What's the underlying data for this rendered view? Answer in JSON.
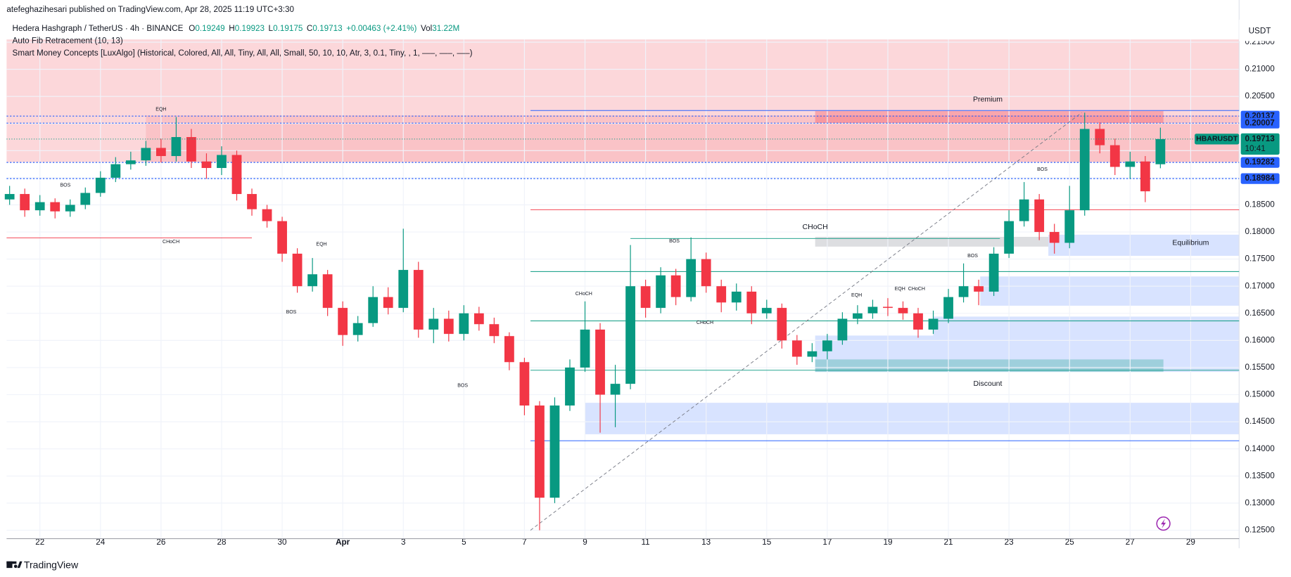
{
  "header": {
    "publisher": "atefeghazihesari published on TradingView.com, Apr 28, 2025 11:19 UTC+3:30",
    "symbol": "Hedera Hashgraph / TetherUS · 4h · BINANCE",
    "ohlc_keys": [
      "O",
      "H",
      "L",
      "C"
    ],
    "change": "+0.00463 (+2.41%)",
    "vol_key": "Vol",
    "vol": "31.22M",
    "indicators": [
      "Auto Fib Retracement (10, 13)",
      "Smart Money Concepts [LuxAlgo] (Historical, Colored, All, All, Tiny, All, All, Small, 50, 10, 10, Atr, 3, 0.1, Tiny, , 1, —–, —–, —–)"
    ],
    "currency": "USDT",
    "footer": "TradingView"
  },
  "chart_data": {
    "type": "candlestick",
    "up_color": "#089981",
    "down_color": "#f23645",
    "grid": true,
    "symbol_label": "HBARUSDT",
    "countdown": "10:41",
    "x": [
      -1,
      -0.5,
      0,
      0.5,
      1,
      1.5,
      2,
      2.5,
      3,
      3.5,
      4,
      4.5,
      5,
      5.5,
      6,
      6.5,
      7,
      7.5,
      8,
      8.5,
      9,
      9.5,
      10,
      10.5,
      11,
      11.5,
      12,
      12.5,
      13,
      13.5,
      14,
      14.5,
      15,
      15.5,
      16,
      16.5,
      17,
      17.5,
      18,
      18.5,
      19,
      19.5,
      20,
      20.5,
      21,
      21.5,
      22,
      22.5,
      23,
      23.5,
      24,
      24.5,
      25,
      25.5,
      26,
      26.5,
      27,
      27.5,
      28,
      28.5,
      29,
      29.5,
      30,
      30.5,
      31,
      31.5,
      32,
      32.5,
      33,
      33.5,
      34,
      34.5,
      35,
      35.5,
      36,
      36.5,
      37
    ],
    "open": [
      0.186,
      0.187,
      0.184,
      0.1855,
      0.1838,
      0.185,
      0.1872,
      0.19,
      0.1925,
      0.1932,
      0.1955,
      0.194,
      0.1975,
      0.193,
      0.1918,
      0.1942,
      0.187,
      0.1842,
      0.182,
      0.176,
      0.17,
      0.1722,
      0.166,
      0.161,
      0.1632,
      0.168,
      0.166,
      0.173,
      0.162,
      0.164,
      0.1612,
      0.165,
      0.163,
      0.1608,
      0.156,
      0.148,
      0.131,
      0.148,
      0.155,
      0.162,
      0.15,
      0.152,
      0.17,
      0.166,
      0.172,
      0.168,
      0.175,
      0.17,
      0.167,
      0.169,
      0.165,
      0.166,
      0.16,
      0.157,
      0.158,
      0.16,
      0.164,
      0.165,
      0.1662,
      0.166,
      0.165,
      0.162,
      0.164,
      0.168,
      0.17,
      0.169,
      0.176,
      0.182,
      0.186,
      0.18,
      0.178,
      0.184,
      0.199,
      0.196,
      0.192,
      0.193,
      0.19249
    ],
    "high": [
      0.1885,
      0.188,
      0.1868,
      0.1862,
      0.186,
      0.1882,
      0.1912,
      0.1938,
      0.1948,
      0.1968,
      0.1972,
      0.2012,
      0.199,
      0.1945,
      0.1958,
      0.195,
      0.188,
      0.185,
      0.1828,
      0.177,
      0.1752,
      0.173,
      0.1672,
      0.1645,
      0.17,
      0.1698,
      0.1806,
      0.1745,
      0.166,
      0.1655,
      0.1665,
      0.1662,
      0.1642,
      0.1615,
      0.1568,
      0.1488,
      0.1495,
      0.1565,
      0.1672,
      0.1632,
      0.1555,
      0.1776,
      0.1712,
      0.1735,
      0.1732,
      0.179,
      0.1762,
      0.1712,
      0.1705,
      0.17,
      0.1675,
      0.1668,
      0.161,
      0.1595,
      0.1612,
      0.1652,
      0.1665,
      0.1675,
      0.1678,
      0.1672,
      0.166,
      0.1655,
      0.1695,
      0.1742,
      0.1712,
      0.1772,
      0.184,
      0.1892,
      0.187,
      0.1815,
      0.1885,
      0.202,
      0.2002,
      0.1972,
      0.1948,
      0.194,
      0.19923
    ],
    "low": [
      0.185,
      0.1828,
      0.183,
      0.1825,
      0.1828,
      0.1842,
      0.1865,
      0.1892,
      0.1915,
      0.1922,
      0.1928,
      0.193,
      0.1918,
      0.1898,
      0.1905,
      0.1858,
      0.183,
      0.1808,
      0.1745,
      0.1688,
      0.169,
      0.1645,
      0.159,
      0.1598,
      0.1625,
      0.1648,
      0.1652,
      0.1605,
      0.1595,
      0.1598,
      0.16,
      0.1618,
      0.1595,
      0.1545,
      0.1462,
      0.125,
      0.13,
      0.147,
      0.1542,
      0.143,
      0.144,
      0.151,
      0.1642,
      0.165,
      0.1665,
      0.1672,
      0.1688,
      0.1652,
      0.1655,
      0.163,
      0.164,
      0.1585,
      0.1555,
      0.156,
      0.1565,
      0.1592,
      0.163,
      0.164,
      0.1645,
      0.1638,
      0.1605,
      0.1612,
      0.1632,
      0.167,
      0.1665,
      0.1682,
      0.1752,
      0.181,
      0.1785,
      0.176,
      0.177,
      0.183,
      0.1945,
      0.1905,
      0.1898,
      0.1855,
      0.19175
    ],
    "close": [
      0.187,
      0.184,
      0.1855,
      0.1838,
      0.185,
      0.1872,
      0.19,
      0.1925,
      0.1932,
      0.1955,
      0.194,
      0.1975,
      0.193,
      0.1918,
      0.1942,
      0.187,
      0.1842,
      0.182,
      0.176,
      0.17,
      0.1722,
      0.166,
      0.161,
      0.1632,
      0.168,
      0.166,
      0.173,
      0.162,
      0.164,
      0.1612,
      0.165,
      0.163,
      0.1608,
      0.156,
      0.148,
      0.131,
      0.148,
      0.155,
      0.162,
      0.15,
      0.152,
      0.17,
      0.166,
      0.172,
      0.168,
      0.175,
      0.17,
      0.167,
      0.169,
      0.165,
      0.166,
      0.16,
      0.157,
      0.158,
      0.16,
      0.164,
      0.165,
      0.1662,
      0.166,
      0.165,
      0.162,
      0.164,
      0.168,
      0.17,
      0.169,
      0.176,
      0.182,
      0.186,
      0.18,
      0.178,
      0.184,
      0.199,
      0.196,
      0.192,
      0.193,
      0.1875,
      0.19713
    ],
    "xlim": [
      -1.1,
      39.6
    ],
    "ylim": [
      0.1235,
      0.2155
    ],
    "xticks": [
      {
        "value": 0,
        "label": "22"
      },
      {
        "value": 2,
        "label": "24"
      },
      {
        "value": 4,
        "label": "26"
      },
      {
        "value": 6,
        "label": "28"
      },
      {
        "value": 8,
        "label": "30"
      },
      {
        "value": 10,
        "label": "Apr"
      },
      {
        "value": 12,
        "label": "3"
      },
      {
        "value": 14,
        "label": "5"
      },
      {
        "value": 16,
        "label": "7"
      },
      {
        "value": 18,
        "label": "9"
      },
      {
        "value": 20,
        "label": "11"
      },
      {
        "value": 22,
        "label": "13"
      },
      {
        "value": 24,
        "label": "15"
      },
      {
        "value": 26,
        "label": "17"
      },
      {
        "value": 28,
        "label": "19"
      },
      {
        "value": 30,
        "label": "21"
      },
      {
        "value": 32,
        "label": "23"
      },
      {
        "value": 34,
        "label": "25"
      },
      {
        "value": 36,
        "label": "27"
      },
      {
        "value": 38,
        "label": "29"
      }
    ],
    "yticks": [
      {
        "value": 0.125,
        "label": "0.12500"
      },
      {
        "value": 0.13,
        "label": "0.13000"
      },
      {
        "value": 0.135,
        "label": "0.13500"
      },
      {
        "value": 0.14,
        "label": "0.14000"
      },
      {
        "value": 0.145,
        "label": "0.14500"
      },
      {
        "value": 0.15,
        "label": "0.15000"
      },
      {
        "value": 0.155,
        "label": "0.15500"
      },
      {
        "value": 0.16,
        "label": "0.16000"
      },
      {
        "value": 0.165,
        "label": "0.16500"
      },
      {
        "value": 0.17,
        "label": "0.17000"
      },
      {
        "value": 0.175,
        "label": "0.17500"
      },
      {
        "value": 0.18,
        "label": "0.18000"
      },
      {
        "value": 0.185,
        "label": "0.18500"
      },
      {
        "value": 0.19,
        "label": "0.19000"
      },
      {
        "value": 0.195,
        "label": "0.19500"
      },
      {
        "value": 0.2,
        "label": "0.20000"
      },
      {
        "value": 0.205,
        "label": "0.20500"
      },
      {
        "value": 0.21,
        "label": "0.21000"
      },
      {
        "value": 0.215,
        "label": "0.21500"
      }
    ],
    "price_lines": [
      {
        "value": 0.20137,
        "color": "#2962ff"
      },
      {
        "value": 0.20007,
        "color": "#2962ff"
      },
      {
        "value": 0.19282,
        "color": "#2962ff"
      },
      {
        "value": 0.18984,
        "color": "#2962ff"
      }
    ],
    "zones": [
      {
        "x0": -1.1,
        "x1": 39.6,
        "y0": 0.1929,
        "y1": 0.2155,
        "color": "rgba(242,54,69,0.2)"
      },
      {
        "x0": 3.5,
        "x1": 39.6,
        "y0": 0.1929,
        "y1": 0.2015,
        "color": "rgba(242,54,69,0.12)"
      },
      {
        "x0": 25.6,
        "x1": 37.1,
        "y0": 0.2,
        "y1": 0.2023,
        "color": "rgba(242,54,69,0.3)"
      },
      {
        "x0": 25.6,
        "x1": 33.3,
        "y0": 0.1773,
        "y1": 0.1791,
        "color": "rgba(120,123,134,0.25)"
      },
      {
        "x0": 33.3,
        "x1": 39.6,
        "y0": 0.1756,
        "y1": 0.1795,
        "color": "rgba(41,98,255,0.18)"
      },
      {
        "x0": 31.05,
        "x1": 39.6,
        "y0": 0.1664,
        "y1": 0.1718,
        "color": "rgba(41,98,255,0.18)"
      },
      {
        "x0": 29.5,
        "x1": 39.6,
        "y0": 0.1609,
        "y1": 0.1644,
        "color": "rgba(41,98,255,0.18)"
      },
      {
        "x0": 25.6,
        "x1": 39.6,
        "y0": 0.1542,
        "y1": 0.1609,
        "color": "rgba(41,98,255,0.18)"
      },
      {
        "x0": 25.6,
        "x1": 37.1,
        "y0": 0.1542,
        "y1": 0.1565,
        "color": "rgba(8,153,129,0.28)"
      },
      {
        "x0": 18,
        "x1": 39.6,
        "y0": 0.1427,
        "y1": 0.1485,
        "color": "rgba(41,98,255,0.18)"
      }
    ],
    "levels": [
      {
        "value": 0.2024,
        "x0": 16.2,
        "x1": 39.6,
        "color": "#2962ff"
      },
      {
        "value": 0.1841,
        "x0": 16.2,
        "x1": 39.6,
        "color": "#f23645"
      },
      {
        "value": 0.1789,
        "x0": -1.1,
        "x1": 7.0,
        "color": "#f23645"
      },
      {
        "value": 0.1788,
        "x0": 19.5,
        "x1": 31.7,
        "color": "#089981"
      },
      {
        "value": 0.1727,
        "x0": 16.2,
        "x1": 39.6,
        "color": "#089981"
      },
      {
        "value": 0.1636,
        "x0": 16.2,
        "x1": 39.6,
        "color": "#089981"
      },
      {
        "value": 0.1545,
        "x0": 16.2,
        "x1": 39.6,
        "color": "#089981"
      },
      {
        "value": 0.1415,
        "x0": 16.2,
        "x1": 39.6,
        "color": "#2962ff"
      }
    ],
    "fib_line": {
      "x": [
        16.2,
        34.4
      ],
      "values": [
        0.125,
        0.202
      ],
      "color": "#787b86"
    },
    "annotations": [
      {
        "text": "EQH",
        "x": 4.0,
        "y": 0.2026,
        "color": "#f23645",
        "size": "tiny"
      },
      {
        "text": "BOS",
        "x": 0.84,
        "y": 0.1886,
        "color": "#089981",
        "size": "tiny"
      },
      {
        "text": "CHoCH",
        "x": 4.33,
        "y": 0.1782,
        "color": "#f23645",
        "size": "tiny"
      },
      {
        "text": "EQH",
        "x": 9.3,
        "y": 0.1777,
        "color": "#f23645",
        "size": "tiny"
      },
      {
        "text": "BOS",
        "x": 8.3,
        "y": 0.1652,
        "color": "#f23645",
        "size": "tiny"
      },
      {
        "text": "BOS",
        "x": 13.96,
        "y": 0.1517,
        "color": "#f23645",
        "size": "tiny"
      },
      {
        "text": "CHoCH",
        "x": 17.96,
        "y": 0.1686,
        "color": "#089981",
        "size": "tiny"
      },
      {
        "text": "BOS",
        "x": 20.95,
        "y": 0.1783,
        "color": "#089981",
        "size": "tiny"
      },
      {
        "text": "CHoCH",
        "x": 21.96,
        "y": 0.1633,
        "color": "#f23645",
        "size": "tiny"
      },
      {
        "text": "CHoCH",
        "x": 25.6,
        "y": 0.1809,
        "color": "#089981",
        "size": "small"
      },
      {
        "text": "EQH",
        "x": 26.97,
        "y": 0.1683,
        "color": "#f23645",
        "size": "tiny"
      },
      {
        "text": "EQH",
        "x": 28.4,
        "y": 0.1695,
        "color": "#f23645",
        "size": "tiny"
      },
      {
        "text": "CHoCH",
        "x": 28.95,
        "y": 0.1695,
        "color": "#089981",
        "size": "tiny"
      },
      {
        "text": "BOS",
        "x": 30.8,
        "y": 0.1756,
        "color": "#089981",
        "size": "tiny"
      },
      {
        "text": "BOS",
        "x": 33.1,
        "y": 0.1915,
        "color": "#089981",
        "size": "tiny"
      },
      {
        "text": "Premium",
        "x": 31.3,
        "y": 0.2044,
        "color": "#f23645",
        "size": "small"
      },
      {
        "text": "Discount",
        "x": 31.3,
        "y": 0.152,
        "color": "#089981",
        "size": "small"
      },
      {
        "text": "Equilibrium",
        "x": 38.0,
        "y": 0.178,
        "color": "#9598a1",
        "size": "small"
      }
    ]
  }
}
